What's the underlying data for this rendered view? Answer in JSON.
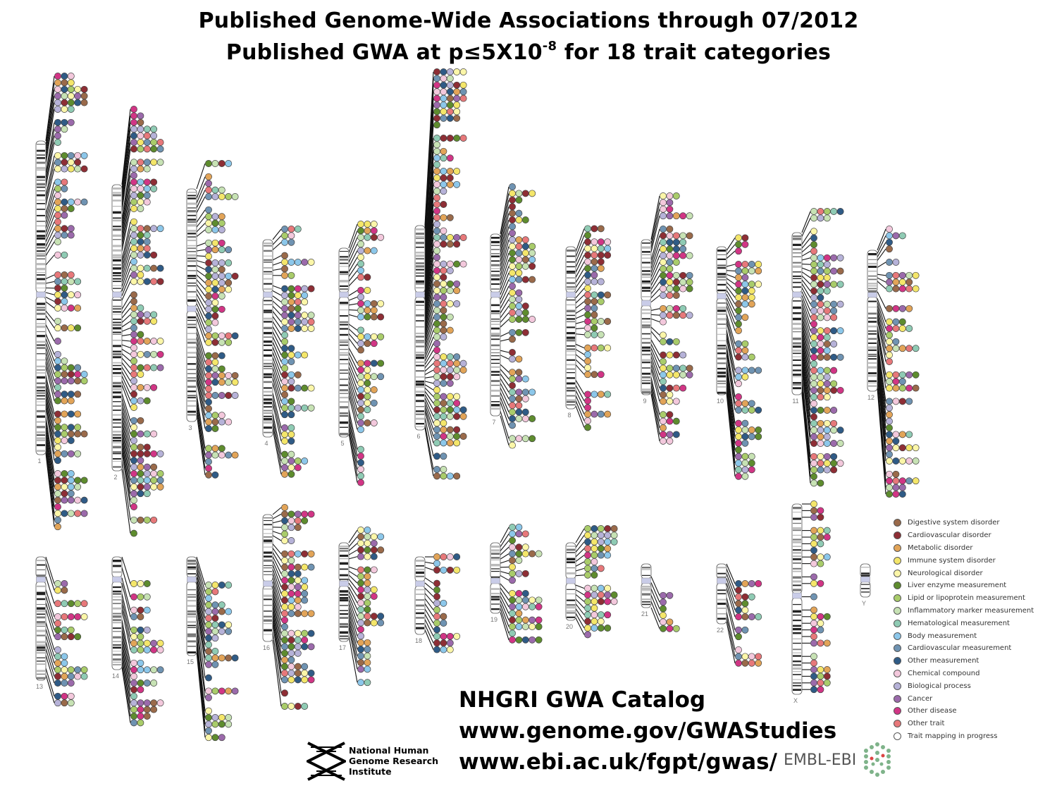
{
  "header": {
    "title_line1": "Published Genome-Wide Associations through 07/2012",
    "title_line2_prefix": "Published GWA at p≤5X10",
    "title_line2_exponent": "-8",
    "title_line2_suffix": " for 18 trait categories"
  },
  "chromosomes": [
    {
      "label": "1"
    },
    {
      "label": "2"
    },
    {
      "label": "3"
    },
    {
      "label": "4"
    },
    {
      "label": "5"
    },
    {
      "label": "6"
    },
    {
      "label": "7"
    },
    {
      "label": "8"
    },
    {
      "label": "9"
    },
    {
      "label": "10"
    },
    {
      "label": "11"
    },
    {
      "label": "12"
    },
    {
      "label": "13"
    },
    {
      "label": "14"
    },
    {
      "label": "15"
    },
    {
      "label": "16"
    },
    {
      "label": "17"
    },
    {
      "label": "18"
    },
    {
      "label": "19"
    },
    {
      "label": "20"
    },
    {
      "label": "21"
    },
    {
      "label": "22"
    },
    {
      "label": "X"
    },
    {
      "label": "Y"
    }
  ],
  "legend": {
    "items": [
      {
        "label": "Digestive system disorder",
        "color": "#9a6a4a"
      },
      {
        "label": "Cardiovascular disorder",
        "color": "#8e2e35"
      },
      {
        "label": "Metabolic disorder",
        "color": "#e2a458"
      },
      {
        "label": "Immune system disorder",
        "color": "#f4e66a"
      },
      {
        "label": "Neurological disorder",
        "color": "#fbf6a8"
      },
      {
        "label": "Liver enzyme measurement",
        "color": "#5e8c2e"
      },
      {
        "label": "Lipid or lipoprotein measurement",
        "color": "#a9cc6a"
      },
      {
        "label": "Inflammatory marker measurement",
        "color": "#c7e2b4"
      },
      {
        "label": "Hematological measurement",
        "color": "#8fcbb4"
      },
      {
        "label": "Body measurement",
        "color": "#8cc7ea"
      },
      {
        "label": "Cardiovascular measurement",
        "color": "#6f93b2"
      },
      {
        "label": "Other measurement",
        "color": "#2f5b86"
      },
      {
        "label": "Chemical compound",
        "color": "#f3c8dc"
      },
      {
        "label": "Biological process",
        "color": "#b6b2d8"
      },
      {
        "label": "Cancer",
        "color": "#9b6aab"
      },
      {
        "label": "Other disease",
        "color": "#d13585"
      },
      {
        "label": "Other trait",
        "color": "#e7787a"
      },
      {
        "label": "Trait mapping in progress",
        "color": "#ffffff"
      }
    ]
  },
  "catalog": {
    "line1": "NHGRI GWA Catalog",
    "line2": "www.genome.gov/GWAStudies",
    "line3": "www.ebi.ac.uk/fgpt/gwas/"
  },
  "logos": {
    "nhgri_line1": "National Human",
    "nhgri_line2": "Genome Research",
    "nhgri_line3": "Institute",
    "embl_text": "EMBL-EBI"
  }
}
